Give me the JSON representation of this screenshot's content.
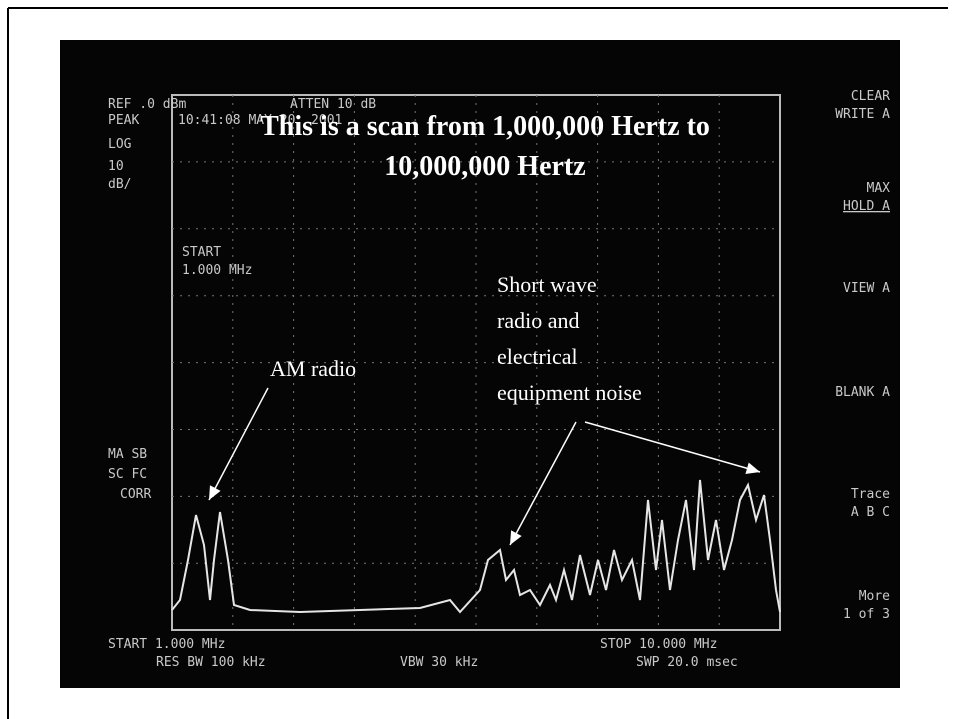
{
  "title": [
    "This is a scan from 1,000,000 Hertz to",
    "10,000,000 Hertz"
  ],
  "annotations": {
    "am": "AM radio",
    "shortwave": [
      "Short wave",
      "radio and",
      "electrical",
      "equipment noise"
    ]
  },
  "screen": {
    "ref": "REF .0 dBm",
    "atten": "ATTEN 10 dB",
    "peak": "PEAK",
    "timestamp": "10:41:08 MAY 20, 2001",
    "log": "LOG",
    "scale_value": "10",
    "scale_unit": "dB/",
    "start_marker": [
      "START",
      "1.000 MHz"
    ],
    "flags": [
      "MA SB",
      "SC FC",
      "CORR"
    ],
    "start": "START 1.000 MHz",
    "stop": "STOP 10.000 MHz",
    "res_bw": "RES BW 100 kHz",
    "vbw": "VBW 30 kHz",
    "swp": "SWP 20.0 msec",
    "softkeys": {
      "clear": [
        "CLEAR",
        "WRITE A"
      ],
      "max": [
        "MAX",
        "HOLD A"
      ],
      "view": "VIEW A",
      "blank": "BLANK A",
      "trace": [
        "Trace",
        "A  B  C"
      ],
      "more": [
        "More",
        "1 of 3"
      ]
    }
  }
}
